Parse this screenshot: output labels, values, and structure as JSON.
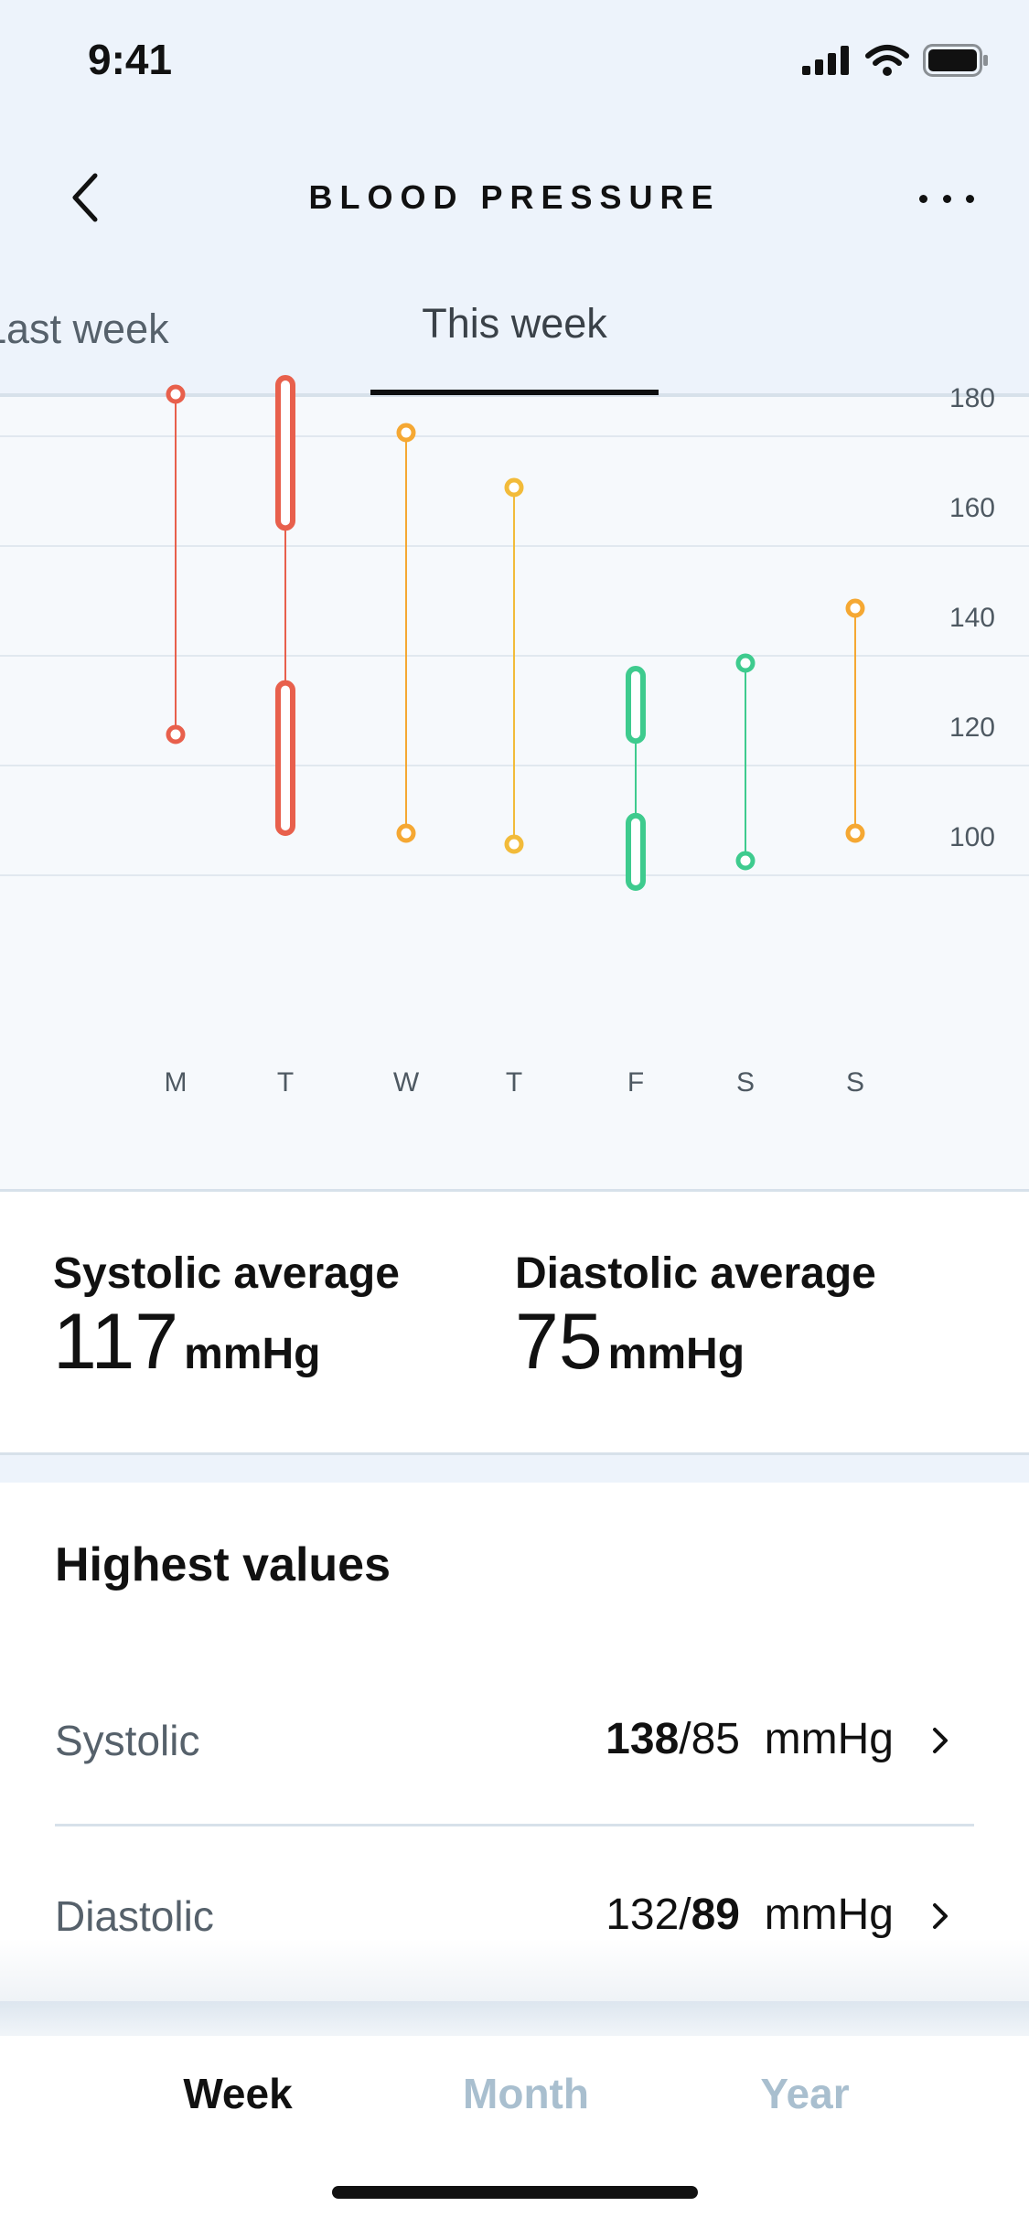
{
  "status_bar": {
    "time": "9:41"
  },
  "header": {
    "title": "BLOOD PRESSURE"
  },
  "week_tabs": {
    "previous": "Last week",
    "current": "This week"
  },
  "chart_data": {
    "type": "range",
    "categories": [
      "M",
      "T",
      "W",
      "T",
      "F",
      "S",
      "S"
    ],
    "y_ticks": [
      180,
      160,
      140,
      120,
      100
    ],
    "ylim": [
      82,
      185
    ],
    "grid": true,
    "ranges": [
      {
        "high": 180,
        "low": 118,
        "style": "dot",
        "color": "#e8604c"
      },
      {
        "high": 183,
        "low": 100,
        "style": "pill",
        "color": "#e8604c"
      },
      {
        "high": 173,
        "low": 100,
        "style": "dot",
        "color": "#f5a833"
      },
      {
        "high": 163,
        "low": 98,
        "style": "dot",
        "color": "#f2bb3a"
      },
      {
        "high": 130,
        "low": 90,
        "style": "pill",
        "color": "#3ecb8e"
      },
      {
        "high": 131,
        "low": 95,
        "style": "dot",
        "color": "#3ecb8e"
      },
      {
        "high": 141,
        "low": 100,
        "style": "dot",
        "color": "#f5a833"
      }
    ]
  },
  "averages": {
    "systolic": {
      "label": "Systolic average",
      "value": "117",
      "unit": "mmHg"
    },
    "diastolic": {
      "label": "Diastolic average",
      "value": "75",
      "unit": "mmHg"
    }
  },
  "highest_values": {
    "title": "Highest values",
    "rows": [
      {
        "label": "Systolic",
        "bold": "138",
        "rest": "/85",
        "unit": "mmHg"
      },
      {
        "label": "Diastolic",
        "plain": "132/",
        "bold": "89",
        "unit": "mmHg"
      }
    ]
  },
  "period_tabs": {
    "week": "Week",
    "month": "Month",
    "year": "Year"
  },
  "colors": {
    "red": "#e8604c",
    "orange": "#f5a833",
    "green": "#3ecb8e",
    "active": "#111111",
    "inactive": "#a9bfcf"
  }
}
